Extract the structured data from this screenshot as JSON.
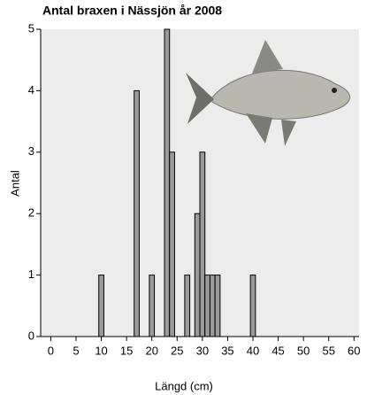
{
  "chart_data": {
    "type": "bar",
    "title": "Antal braxen i Nässjön år 2008",
    "x_label": "Längd (cm)",
    "y_label": "Antal",
    "x": [
      10,
      17,
      20,
      23,
      24,
      27,
      29,
      30,
      31,
      32,
      33,
      40
    ],
    "values": [
      1,
      4,
      1,
      5,
      3,
      1,
      2,
      3,
      1,
      1,
      1,
      1
    ],
    "color": "#9a9a9a",
    "xlim": [
      -2,
      61
    ],
    "xticks": [
      0,
      5,
      10,
      15,
      20,
      25,
      30,
      35,
      40,
      45,
      50,
      55,
      60
    ],
    "ylim": [
      0,
      5
    ],
    "yticks": [
      0,
      1,
      2,
      3,
      4,
      5
    ]
  }
}
